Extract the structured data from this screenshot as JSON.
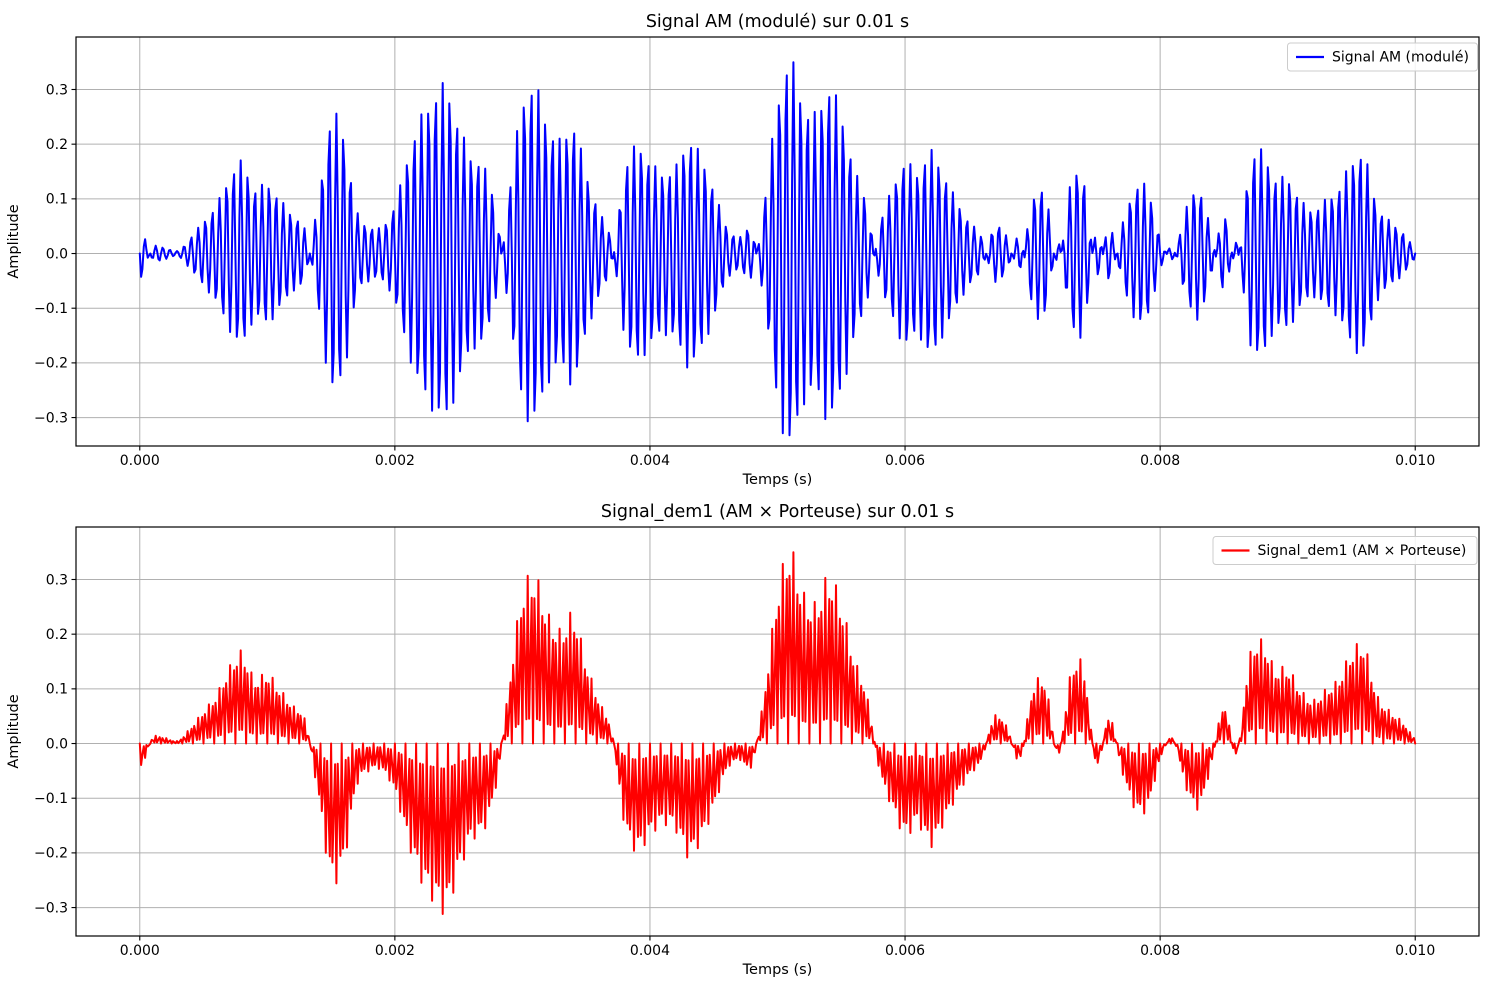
{
  "figure": {
    "background": "#ffffff",
    "grid_color": "#b0b0b0",
    "spine_color": "#000000",
    "text_color": "#000000"
  },
  "chart_data": {
    "type": "line",
    "layout": "two stacked subplots, shared style (matplotlib)",
    "carrier_hz": 18000,
    "render_sample_rate_hz": 96000,
    "duration_s": 0.01,
    "envelope_signal": {
      "description": "Signed modulating envelope m(t) read from the figure. Top trace = m(t)*sin(2*pi*fc*t); bottom trace = m(t)*sin(2*pi*fc*t)^2 (AM multiplied by carrier).",
      "dt_s": 0.0001,
      "values": [
        -0.05,
        0.01,
        0.01,
        0.005,
        0.03,
        0.06,
        0.09,
        0.14,
        0.17,
        0.12,
        0.13,
        0.1,
        0.07,
        0.04,
        -0.1,
        -0.25,
        -0.22,
        -0.08,
        -0.05,
        -0.05,
        -0.09,
        -0.18,
        -0.25,
        -0.29,
        -0.31,
        -0.24,
        -0.18,
        -0.16,
        -0.07,
        0.12,
        0.28,
        0.31,
        0.24,
        0.21,
        0.24,
        0.15,
        0.08,
        0.02,
        -0.15,
        -0.2,
        -0.17,
        -0.15,
        -0.16,
        -0.21,
        -0.18,
        -0.12,
        -0.05,
        -0.03,
        -0.04,
        0.1,
        0.28,
        0.36,
        0.28,
        0.26,
        0.31,
        0.26,
        0.16,
        0.09,
        -0.05,
        -0.12,
        -0.17,
        -0.15,
        -0.19,
        -0.15,
        -0.1,
        -0.06,
        -0.03,
        0.05,
        0.03,
        -0.03,
        0.1,
        0.11,
        -0.02,
        0.13,
        0.14,
        -0.04,
        0.05,
        -0.05,
        -0.12,
        -0.12,
        -0.03,
        0.01,
        -0.08,
        -0.12,
        -0.04,
        0.07,
        -0.02,
        0.16,
        0.19,
        0.14,
        0.14,
        0.1,
        0.08,
        0.1,
        0.12,
        0.17,
        0.18,
        0.09,
        0.06,
        0.04,
        0.01
      ]
    },
    "subplots": [
      {
        "title": "Signal AM (modulé) sur 0.01 s",
        "xlabel": "Temps (s)",
        "ylabel": "Amplitude",
        "legend_label": "Signal AM (modulé)",
        "legend_position": "upper right",
        "line_color": "#0000ff",
        "signal_kind": "am",
        "grid": true,
        "xlim": [
          -0.0005,
          0.0105
        ],
        "ylim": [
          -0.352,
          0.396
        ],
        "xticks": [
          0.0,
          0.002,
          0.004,
          0.006,
          0.008,
          0.01
        ],
        "xtick_labels": [
          "0.000",
          "0.002",
          "0.004",
          "0.006",
          "0.008",
          "0.010"
        ],
        "yticks": [
          -0.3,
          -0.2,
          -0.1,
          0.0,
          0.1,
          0.2,
          0.3
        ],
        "ytick_labels": [
          "−0.3",
          "−0.2",
          "−0.1",
          "0.0",
          "0.1",
          "0.2",
          "0.3"
        ]
      },
      {
        "title": "Signal_dem1 (AM × Porteuse) sur 0.01 s",
        "xlabel": "Temps (s)",
        "ylabel": "Amplitude",
        "legend_label": "Signal_dem1 (AM × Porteuse)",
        "legend_position": "upper right",
        "line_color": "#ff0000",
        "signal_kind": "product",
        "grid": true,
        "xlim": [
          -0.0005,
          0.0105
        ],
        "ylim": [
          -0.352,
          0.396
        ],
        "xticks": [
          0.0,
          0.002,
          0.004,
          0.006,
          0.008,
          0.01
        ],
        "xtick_labels": [
          "0.000",
          "0.002",
          "0.004",
          "0.006",
          "0.008",
          "0.010"
        ],
        "yticks": [
          -0.3,
          -0.2,
          -0.1,
          0.0,
          0.1,
          0.2,
          0.3
        ],
        "ytick_labels": [
          "−0.3",
          "−0.2",
          "−0.1",
          "0.0",
          "0.1",
          "0.2",
          "0.3"
        ]
      }
    ]
  }
}
